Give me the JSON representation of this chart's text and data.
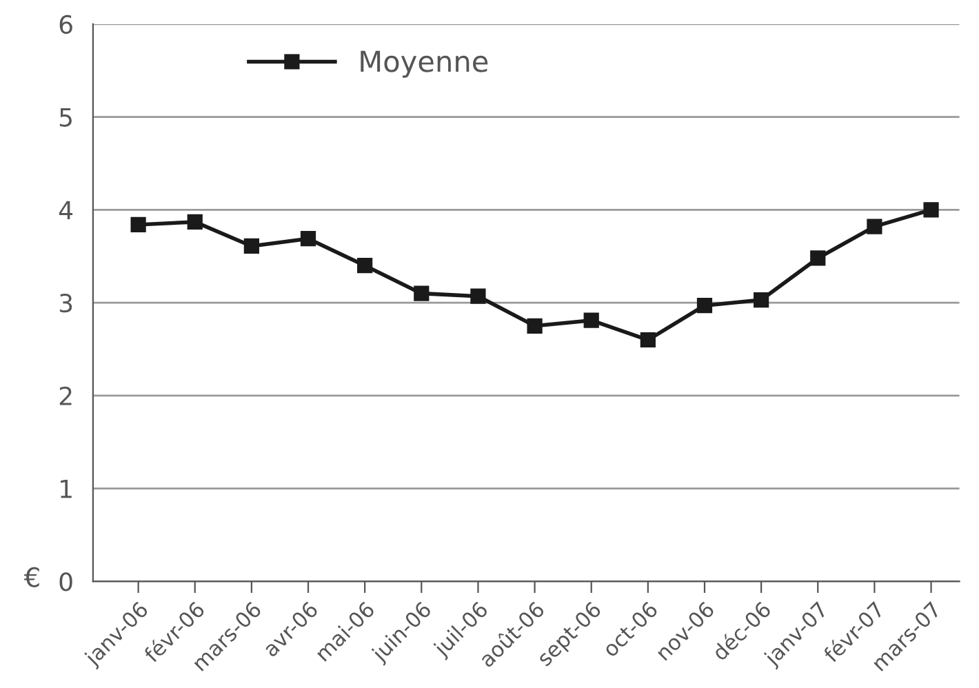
{
  "chart_data": {
    "type": "line",
    "ylabel": "€",
    "categories": [
      "janv-06",
      "févr-06",
      "mars-06",
      "avr-06",
      "mai-06",
      "juin-06",
      "juil-06",
      "août-06",
      "sept-06",
      "oct-06",
      "nov-06",
      "déc-06",
      "janv-07",
      "févr-07",
      "mars-07"
    ],
    "series": [
      {
        "name": "Moyenne",
        "color": "#1a1a1a",
        "values": [
          3.84,
          3.87,
          3.61,
          3.69,
          3.4,
          3.1,
          3.07,
          2.75,
          2.81,
          2.6,
          2.97,
          3.03,
          3.48,
          3.82,
          4.0
        ]
      }
    ],
    "ylim": [
      0,
      6
    ],
    "yticks": [
      0,
      1,
      2,
      3,
      4,
      5,
      6
    ],
    "grid": "y",
    "legend": "top left",
    "marker": "square",
    "line_style": "solid"
  }
}
